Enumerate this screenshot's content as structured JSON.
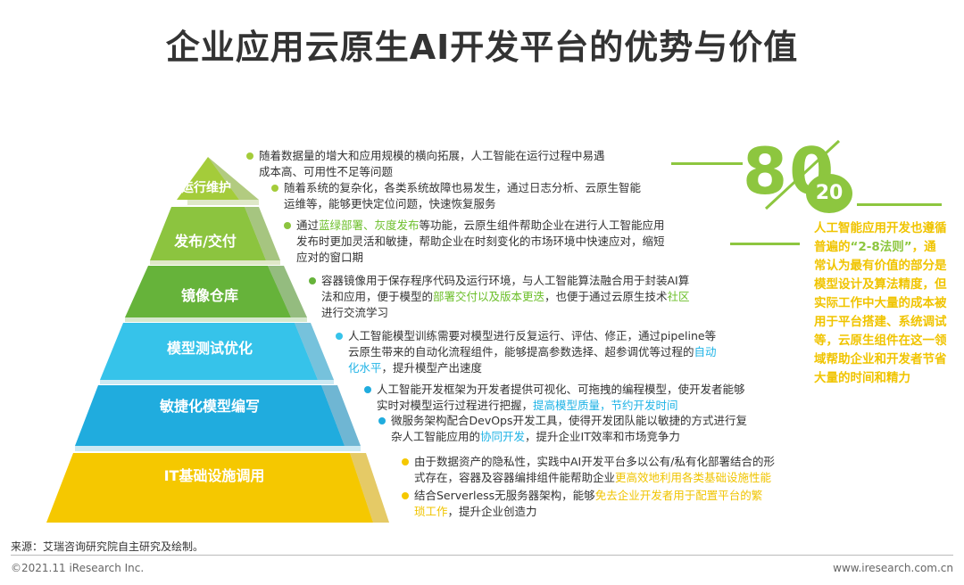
{
  "title": "企业应用云原生AI开发平台的优势与价值",
  "pyramid": {
    "tiers": [
      {
        "label": "运行维护",
        "color": "#a4cc3a"
      },
      {
        "label": "发布/交付",
        "color": "#8cc43f"
      },
      {
        "label": "镜像仓库",
        "color": "#66b33a"
      },
      {
        "label": "模型测试优化",
        "color": "#36c3ea"
      },
      {
        "label": "敏捷化模型编写",
        "color": "#20acde"
      },
      {
        "label": "IT基础设施调用",
        "color": "#f5c800"
      }
    ]
  },
  "descriptions": [
    {
      "parts": [
        "随着数据量的增大和应用规模的横向拓展，人工智能在运行过程中易遇",
        "成本高、可用性不足等问题"
      ]
    },
    {
      "parts": [
        "随着系统的复杂化，各类系统故障也易发生，通过日志分析、云原生智能",
        "运维等，能够更快定位问题，快速恢复服务"
      ]
    },
    {
      "pre": "通过",
      "hl1": "蓝绿部署、灰度发布",
      "post": "等功能，云原生组件帮助企业在进行人工智能应用",
      "l2": "发布时更加灵活和敏捷，帮助企业在时刻变化的市场环境中快速应对，缩短",
      "l3": "应对的窗口期"
    },
    {
      "l1": "容器镜像用于保存程序代码及运行环境，与人工智能算法融合用于封装AI算",
      "l2pre": "法和应用，便于模型的",
      "hl1": "部署交付以及版本更迭",
      "l2mid": "，也便于通过云原生技术",
      "hl2": "社区",
      "l3": "进行交流学习"
    },
    {
      "l1": "人工智能模型训练需要对模型进行反复运行、评估、修正，通过pipeline等",
      "l2pre": "云原生带来的自动化流程组件，能够提高参数选择、超参调优等过程的",
      "hl1": "自动",
      "hl2": "化水平",
      "l3post": "，提升模型产出速度"
    },
    {
      "l1": "人工智能开发框架为开发者提供可视化、可拖拽的编程模型，使开发者能够",
      "l2pre": "实时对模型运行过程进行把握，",
      "hl1": "提高模型质量，节约开发时间"
    },
    {
      "l1": "微服务架构配合DevOps开发工具，使得开发团队能以敏捷的方式进行复",
      "l2pre": "杂人工智能应用的",
      "hl1": "协同开发",
      "l2post": "，提升企业IT效率和市场竞争力"
    },
    {
      "l1": "由于数据资产的隐私性，实践中AI开发平台多以公有/私有化部署结合的形",
      "l2pre": "式存在，容器及容器编排组件能帮助企业",
      "hl1": "更高效地利用各类基础设施性能"
    },
    {
      "l1pre": "结合Serverless无服务器架构，能够",
      "hl1": "免去企业开发者用于配置平台的繁",
      "hl2": "琐工作",
      "l2post": "，提升企业创造力"
    }
  ],
  "ratio": {
    "big": "80",
    "small": "20"
  },
  "side_text": {
    "a": "人工智能应用开发也遵循普遍的",
    "b": "“2-8法则”",
    "c": "，通常认为最有价值的部分是模型设计及算法精度，但实际工作中大量的成本被用于平台搭建、系统调试等，云原生组件在这一领域帮助企业和开发者节省大量的时间和精力"
  },
  "colors": {
    "green": "#8dc63f",
    "blue": "#1fb3e6",
    "yellow": "#f5c800"
  },
  "source": "来源：艾瑞咨询研究院自主研究及绘制。",
  "footer": {
    "left": "©2021.11 iResearch Inc.",
    "right": "www.iresearch.com.cn"
  }
}
